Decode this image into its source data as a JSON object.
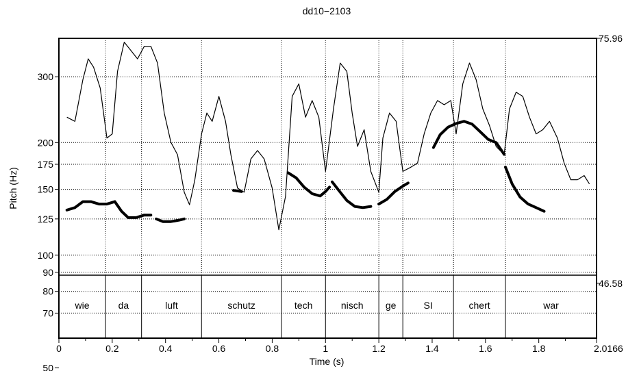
{
  "chart_data": {
    "type": "line",
    "title": "dd10−2103",
    "xlabel": "Time (s)",
    "ylabel": "Pitch (Hz)",
    "xlim": [
      0,
      2.0166
    ],
    "x_end_label": "2.0166",
    "x_ticks": [
      {
        "v": 0,
        "label": "0"
      },
      {
        "v": 0.2,
        "label": "0.2"
      },
      {
        "v": 0.4,
        "label": "0.4"
      },
      {
        "v": 0.6,
        "label": "0.6"
      },
      {
        "v": 0.8,
        "label": "0.8"
      },
      {
        "v": 1.0,
        "label": "1"
      },
      {
        "v": 1.2,
        "label": "1.2"
      },
      {
        "v": 1.4,
        "label": "1.4"
      },
      {
        "v": 1.6,
        "label": "1.6"
      },
      {
        "v": 1.8,
        "label": "1.8"
      },
      {
        "v": 2.0166,
        "label": "2.0166"
      }
    ],
    "y_scale": "log",
    "ylim": [
      60,
      380
    ],
    "y_ticks": [
      {
        "v": 300,
        "label": "300",
        "grid": true
      },
      {
        "v": 200,
        "label": "200",
        "grid": true
      },
      {
        "v": 175,
        "label": "175",
        "grid": true
      },
      {
        "v": 150,
        "label": "150",
        "grid": true
      },
      {
        "v": 125,
        "label": "125",
        "grid": true
      },
      {
        "v": 100,
        "label": "100",
        "grid": true
      },
      {
        "v": 90,
        "label": "90",
        "grid": true
      },
      {
        "v": 80,
        "label": "80",
        "grid": true
      },
      {
        "v": 70,
        "label": "70",
        "grid": true
      },
      {
        "v": 50,
        "label": "50",
        "grid": false
      }
    ],
    "intensity_axis": {
      "position": "right",
      "ylim": [
        40.0,
        75.96
      ],
      "labels": [
        {
          "v": 75.96,
          "label": "75.96"
        },
        {
          "v": 46.58,
          "label": "46.58"
        }
      ]
    },
    "grid": true,
    "segments": [
      {
        "label": "wie",
        "start": 0.0,
        "end": 0.175
      },
      {
        "label": "da",
        "start": 0.175,
        "end": 0.31
      },
      {
        "label": "luft",
        "start": 0.31,
        "end": 0.535
      },
      {
        "label": "schutz",
        "start": 0.535,
        "end": 0.835
      },
      {
        "label": "tech",
        "start": 0.835,
        "end": 1.0
      },
      {
        "label": "nisch",
        "start": 1.0,
        "end": 1.2
      },
      {
        "label": "ge",
        "start": 1.2,
        "end": 1.29
      },
      {
        "label": "SI",
        "start": 1.29,
        "end": 1.48
      },
      {
        "label": "chert",
        "start": 1.48,
        "end": 1.675
      },
      {
        "label": "war",
        "start": 1.675,
        "end": 2.0166
      }
    ],
    "series": [
      {
        "kind": "pitch",
        "color": "#000000",
        "runs": [
          {
            "x": [
              0.03,
              0.06,
              0.09,
              0.12,
              0.15,
              0.18,
              0.21
            ],
            "y": [
              132,
              134,
              139,
              139,
              137,
              137,
              139
            ]
          },
          {
            "x": [
              0.21,
              0.235,
              0.26,
              0.29,
              0.32,
              0.345
            ],
            "y": [
              139,
              131,
              126,
              126,
              128,
              128
            ]
          },
          {
            "x": [
              0.365,
              0.39,
              0.42,
              0.45,
              0.47
            ],
            "y": [
              125,
              123,
              123,
              124,
              125
            ]
          },
          {
            "x": [
              0.655,
              0.685
            ],
            "y": [
              149,
              148
            ]
          },
          {
            "x": [
              0.86,
              0.89,
              0.92,
              0.95,
              0.98,
              1.0,
              1.015
            ],
            "y": [
              166,
              161,
              152,
              146,
              144,
              148,
              152
            ]
          },
          {
            "x": [
              1.025,
              1.05,
              1.08,
              1.11,
              1.14,
              1.17
            ],
            "y": [
              157,
              149,
              140,
              135,
              134,
              135
            ]
          },
          {
            "x": [
              1.2,
              1.23,
              1.26,
              1.29,
              1.31
            ],
            "y": [
              137,
              141,
              148,
              153,
              156
            ]
          },
          {
            "x": [
              1.405,
              1.43,
              1.46,
              1.49,
              1.52,
              1.55,
              1.58,
              1.61,
              1.64,
              1.67
            ],
            "y": [
              194,
              210,
              220,
              225,
              228,
              224,
              214,
              204,
              200,
              186
            ]
          },
          {
            "x": [
              1.675,
              1.7,
              1.73,
              1.76,
              1.79,
              1.82
            ],
            "y": [
              172,
              155,
              143,
              137,
              134,
              131
            ]
          }
        ]
      },
      {
        "kind": "intensity",
        "color": "#000000",
        "x": [
          0.03,
          0.06,
          0.09,
          0.11,
          0.13,
          0.155,
          0.18,
          0.2,
          0.22,
          0.245,
          0.27,
          0.295,
          0.32,
          0.345,
          0.37,
          0.395,
          0.42,
          0.445,
          0.47,
          0.49,
          0.51,
          0.535,
          0.555,
          0.575,
          0.6,
          0.625,
          0.645,
          0.67,
          0.695,
          0.72,
          0.745,
          0.77,
          0.8,
          0.825,
          0.85,
          0.875,
          0.9,
          0.925,
          0.95,
          0.975,
          1.0,
          1.03,
          1.055,
          1.08,
          1.1,
          1.12,
          1.145,
          1.17,
          1.2,
          1.215,
          1.24,
          1.265,
          1.29,
          1.32,
          1.345,
          1.37,
          1.395,
          1.42,
          1.445,
          1.47,
          1.49,
          1.515,
          1.54,
          1.565,
          1.59,
          1.615,
          1.64,
          1.67,
          1.69,
          1.715,
          1.74,
          1.765,
          1.79,
          1.815,
          1.84,
          1.87,
          1.895,
          1.92,
          1.945,
          1.97,
          1.99
        ],
        "y": [
          66.5,
          66.0,
          71.0,
          73.5,
          72.5,
          70.0,
          64.0,
          64.5,
          72.0,
          75.5,
          74.5,
          73.5,
          75.0,
          75.0,
          73.0,
          67.0,
          63.5,
          62.0,
          57.5,
          56.0,
          59.0,
          64.5,
          67.0,
          66.0,
          69.0,
          66.0,
          62.0,
          58.0,
          57.5,
          61.5,
          62.5,
          61.5,
          58.0,
          53.0,
          57.0,
          69.0,
          70.5,
          66.5,
          68.5,
          66.5,
          60.0,
          67.5,
          73.0,
          72.0,
          67.0,
          63.0,
          65.0,
          60.0,
          57.5,
          64.0,
          67.0,
          66.0,
          60.0,
          60.5,
          61.0,
          64.5,
          67.0,
          68.5,
          68.0,
          68.5,
          64.5,
          70.5,
          73.0,
          71.0,
          67.5,
          65.5,
          63.0,
          62.0,
          67.5,
          69.5,
          69.0,
          66.5,
          64.5,
          65.0,
          66.0,
          64.0,
          61.0,
          59.0,
          59.0,
          59.5,
          58.5
        ]
      }
    ]
  }
}
